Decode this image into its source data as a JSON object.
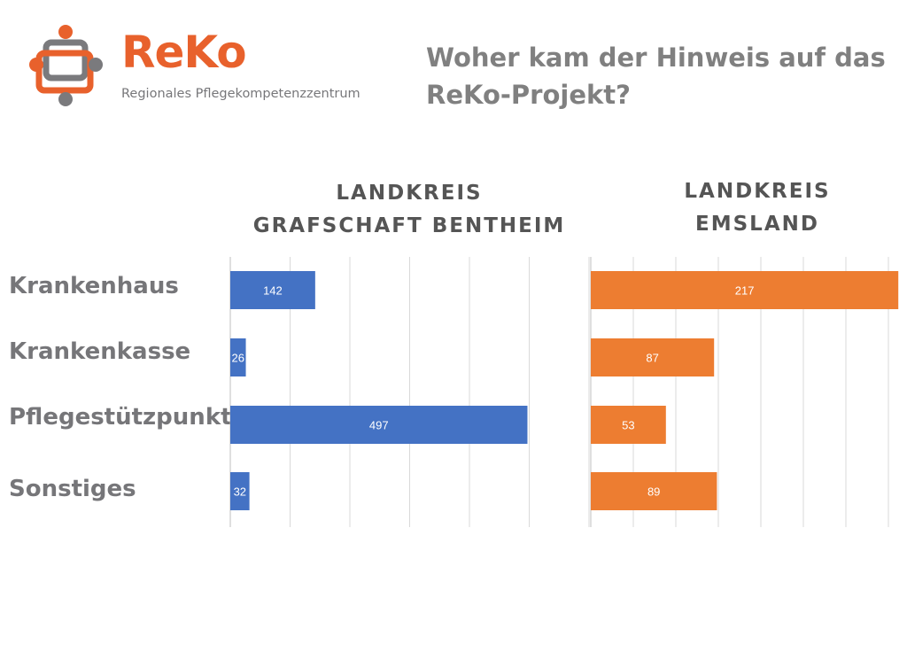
{
  "logo": {
    "wordmark": "ReKo",
    "subtitle": "Regionales Pflegekompetenzzentrum",
    "colors": {
      "orange": "#e8612c",
      "gray": "#77777a"
    }
  },
  "slide": {
    "title_line1": "Woher kam der Hinweis auf das",
    "title_line2": "ReKo-Projekt?"
  },
  "chart_data": [
    {
      "type": "bar",
      "orientation": "horizontal",
      "title_line1": "LANDKREIS",
      "title_line2": "GRAFSCHAFT BENTHEIM",
      "categories": [
        "Krankenhaus",
        "Krankenkasse",
        "Pflegestützpunkt",
        "Sonstiges"
      ],
      "values": [
        142,
        26,
        497,
        32
      ],
      "color": "#4472c4",
      "xlim": [
        0,
        600
      ],
      "grid": true,
      "data_labels": true
    },
    {
      "type": "bar",
      "orientation": "horizontal",
      "title_line1": "LANDKREIS",
      "title_line2": "EMSLAND",
      "categories": [
        "Krankenhaus",
        "Krankenkasse",
        "Pflegestützpunkt",
        "Sonstiges"
      ],
      "values": [
        217,
        87,
        53,
        89
      ],
      "color": "#ed7d31",
      "xlim": [
        0,
        220
      ],
      "grid": true,
      "data_labels": true
    }
  ]
}
